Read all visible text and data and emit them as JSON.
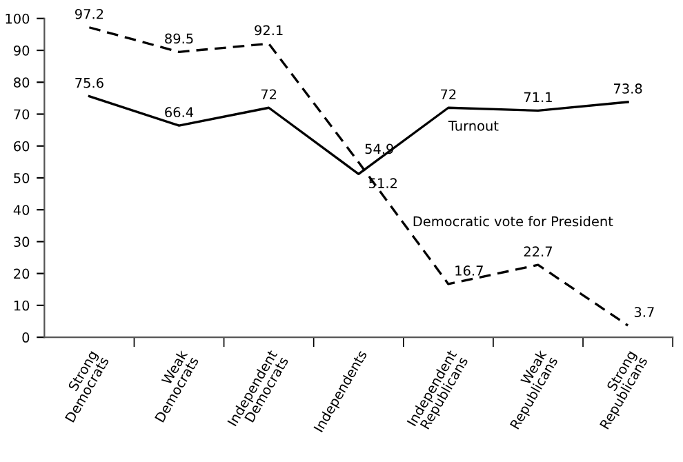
{
  "chart_data": {
    "type": "line",
    "categories": [
      "Strong\nDemocrats",
      "Weak\nDemocrats",
      "Independent\nDemocrats",
      "Independents",
      "Independent\nRepublicans",
      "Weak\nRepublicans",
      "Strong\nRepublicans"
    ],
    "series": [
      {
        "name": "Turnout",
        "color": "#000000",
        "line_style": "solid",
        "values": [
          75.6,
          66.4,
          72,
          51.2,
          72,
          71.1,
          73.8
        ]
      },
      {
        "name": "Democratic vote for President",
        "color": "#000000",
        "line_style": "dashed",
        "values": [
          97.2,
          89.5,
          92.1,
          54.9,
          16.7,
          22.7,
          3.7
        ]
      }
    ],
    "ylim": [
      0,
      100
    ],
    "yticks": [
      0,
      10,
      20,
      30,
      40,
      50,
      60,
      70,
      80,
      90,
      100
    ],
    "data_labels": true,
    "grid": false,
    "legend": false,
    "marker": "none"
  }
}
